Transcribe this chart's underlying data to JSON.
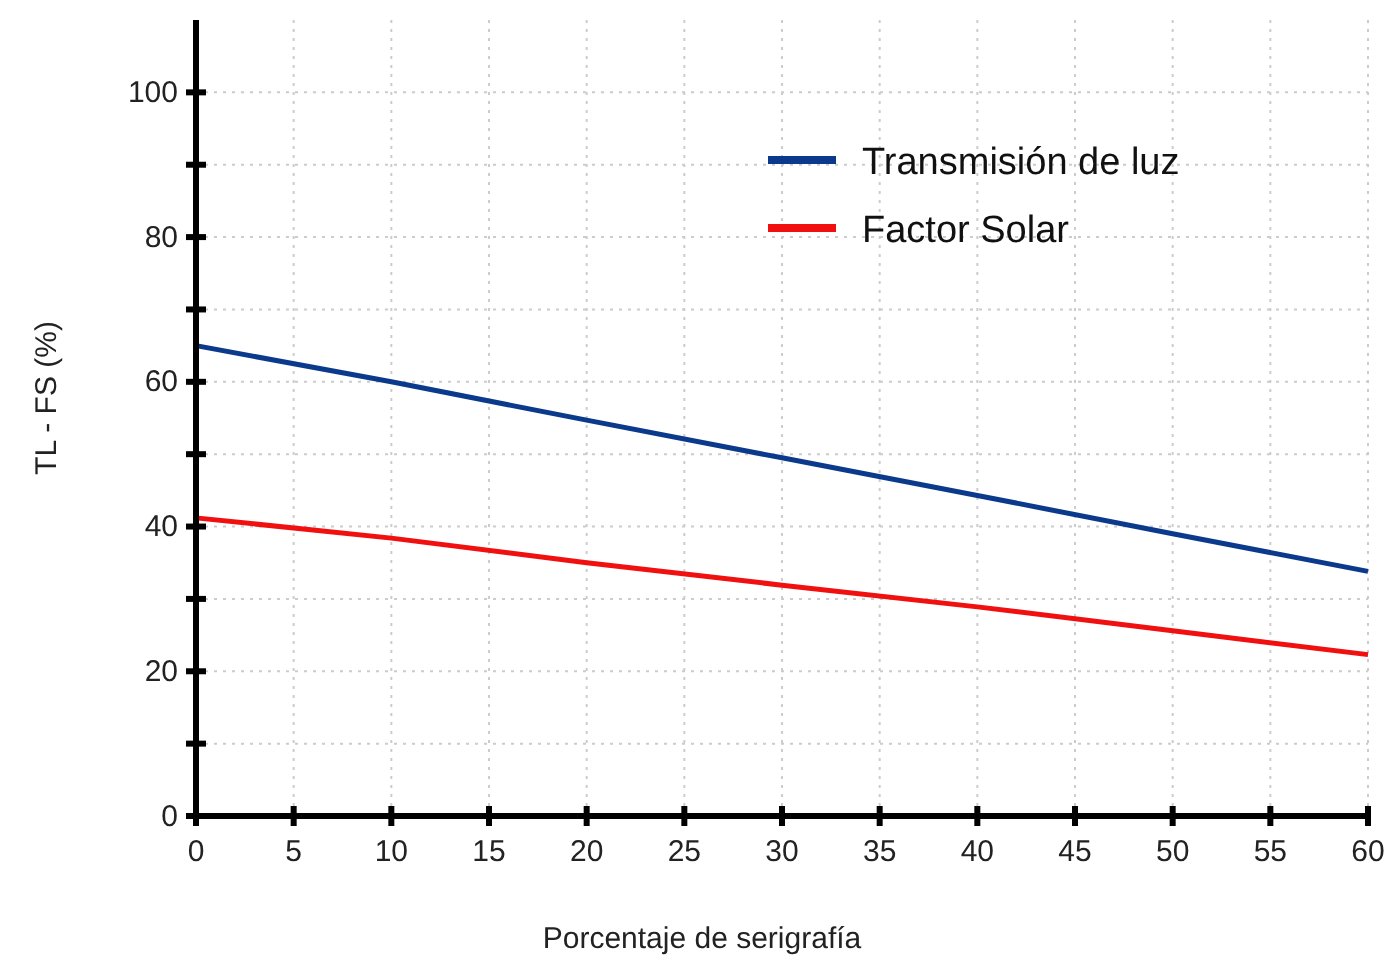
{
  "chart_data": {
    "type": "line",
    "xlabel": "Porcentaje de serigrafía",
    "ylabel": "TL - FS (%)",
    "x": [
      0,
      10,
      20,
      30,
      40,
      50,
      60
    ],
    "series": [
      {
        "name": "Transmisión de luz",
        "color": "#0b3a8c",
        "values": [
          65,
          60,
          54.7,
          49.5,
          44.3,
          39,
          33.8
        ]
      },
      {
        "name": "Factor Solar",
        "color": "#f01010",
        "values": [
          41.2,
          38.4,
          35,
          31.9,
          28.9,
          25.6,
          22.3
        ]
      }
    ],
    "xlim": [
      0,
      60
    ],
    "xticks": [
      0,
      5,
      10,
      15,
      20,
      25,
      30,
      35,
      40,
      45,
      50,
      55,
      60
    ],
    "ylim": [
      0,
      110
    ],
    "yticks": [
      0,
      {
        "value": 10,
        "label": null
      },
      20,
      {
        "value": 30,
        "label": null
      },
      40,
      {
        "value": 50,
        "label": null
      },
      60,
      {
        "value": 70,
        "label": null
      },
      80,
      {
        "value": 90,
        "label": null
      },
      100
    ],
    "grid": true,
    "legend": "top right",
    "marker": "none",
    "line_style": "solid"
  }
}
